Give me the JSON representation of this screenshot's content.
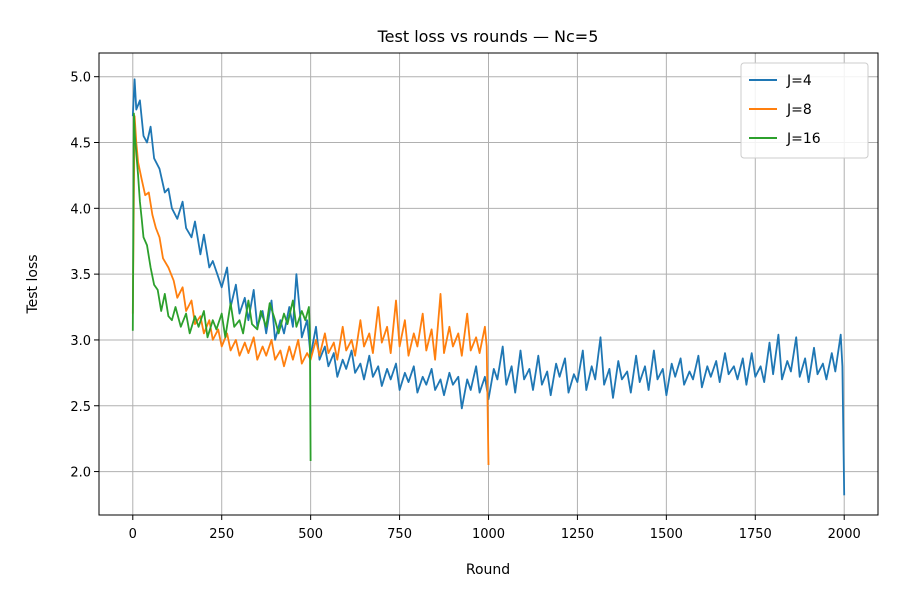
{
  "chart_data": {
    "type": "line",
    "title": "Test loss vs rounds — Nc=5",
    "xlabel": "Round",
    "ylabel": "Test loss",
    "xlim": [
      -95,
      2095
    ],
    "ylim": [
      1.67,
      5.18
    ],
    "xticks": [
      0,
      250,
      500,
      750,
      1000,
      1250,
      1500,
      1750,
      2000
    ],
    "yticks": [
      2.0,
      2.5,
      3.0,
      3.5,
      4.0,
      4.5,
      5.0
    ],
    "xtick_labels": [
      "0",
      "250",
      "500",
      "750",
      "1000",
      "1250",
      "1500",
      "1750",
      "2000"
    ],
    "ytick_labels": [
      "2.0",
      "2.5",
      "3.0",
      "3.5",
      "4.0",
      "4.5",
      "5.0"
    ],
    "grid": true,
    "legend_position": "top-right",
    "series": [
      {
        "name": "J=4",
        "color": "#1f77b4",
        "x": [
          0,
          5,
          10,
          20,
          30,
          40,
          50,
          60,
          75,
          90,
          100,
          110,
          125,
          140,
          150,
          165,
          175,
          190,
          200,
          215,
          225,
          240,
          250,
          265,
          275,
          290,
          300,
          315,
          325,
          340,
          350,
          365,
          375,
          390,
          400,
          415,
          425,
          440,
          450,
          460,
          470,
          475,
          490,
          500,
          515,
          525,
          540,
          550,
          565,
          575,
          590,
          600,
          615,
          625,
          640,
          650,
          665,
          675,
          690,
          700,
          715,
          725,
          740,
          750,
          765,
          775,
          790,
          800,
          815,
          825,
          840,
          850,
          865,
          875,
          890,
          900,
          915,
          925,
          940,
          950,
          965,
          975,
          990,
          1000,
          1015,
          1025,
          1040,
          1050,
          1065,
          1075,
          1090,
          1100,
          1115,
          1125,
          1140,
          1150,
          1165,
          1175,
          1190,
          1200,
          1215,
          1225,
          1240,
          1250,
          1265,
          1275,
          1290,
          1300,
          1315,
          1325,
          1340,
          1350,
          1365,
          1375,
          1390,
          1400,
          1415,
          1425,
          1440,
          1450,
          1465,
          1475,
          1490,
          1500,
          1515,
          1525,
          1540,
          1550,
          1565,
          1575,
          1590,
          1600,
          1615,
          1625,
          1640,
          1650,
          1665,
          1675,
          1690,
          1700,
          1715,
          1725,
          1740,
          1750,
          1765,
          1775,
          1790,
          1800,
          1815,
          1825,
          1840,
          1850,
          1865,
          1875,
          1890,
          1900,
          1915,
          1925,
          1940,
          1950,
          1965,
          1975,
          1990,
          1995,
          2000
        ],
        "values": [
          4.7,
          4.98,
          4.75,
          4.82,
          4.55,
          4.5,
          4.62,
          4.38,
          4.3,
          4.12,
          4.15,
          4.0,
          3.92,
          4.05,
          3.85,
          3.78,
          3.9,
          3.65,
          3.8,
          3.55,
          3.6,
          3.48,
          3.4,
          3.55,
          3.25,
          3.42,
          3.2,
          3.32,
          3.15,
          3.38,
          3.1,
          3.22,
          3.05,
          3.3,
          3.0,
          3.15,
          3.05,
          3.25,
          3.1,
          3.5,
          3.2,
          3.02,
          3.15,
          2.88,
          3.1,
          2.85,
          2.95,
          2.8,
          2.9,
          2.72,
          2.85,
          2.78,
          2.92,
          2.75,
          2.82,
          2.7,
          2.88,
          2.72,
          2.8,
          2.65,
          2.78,
          2.7,
          2.82,
          2.62,
          2.75,
          2.68,
          2.8,
          2.6,
          2.72,
          2.66,
          2.78,
          2.62,
          2.7,
          2.58,
          2.75,
          2.66,
          2.72,
          2.48,
          2.7,
          2.62,
          2.8,
          2.6,
          2.72,
          2.55,
          2.78,
          2.7,
          2.95,
          2.66,
          2.8,
          2.6,
          2.92,
          2.7,
          2.78,
          2.62,
          2.88,
          2.66,
          2.76,
          2.58,
          2.82,
          2.72,
          2.86,
          2.6,
          2.74,
          2.68,
          2.92,
          2.62,
          2.8,
          2.7,
          3.02,
          2.66,
          2.78,
          2.56,
          2.84,
          2.7,
          2.76,
          2.6,
          2.88,
          2.68,
          2.8,
          2.62,
          2.92,
          2.7,
          2.78,
          2.58,
          2.82,
          2.72,
          2.86,
          2.66,
          2.76,
          2.7,
          2.88,
          2.64,
          2.8,
          2.72,
          2.84,
          2.68,
          2.9,
          2.74,
          2.8,
          2.7,
          2.86,
          2.66,
          2.9,
          2.72,
          2.8,
          2.68,
          2.98,
          2.74,
          3.04,
          2.7,
          2.84,
          2.76,
          3.02,
          2.72,
          2.86,
          2.68,
          2.94,
          2.74,
          2.82,
          2.7,
          2.9,
          2.76,
          3.04,
          2.8,
          1.82
        ]
      },
      {
        "name": "J=8",
        "color": "#ff7f0e",
        "x": [
          0,
          5,
          10,
          15,
          25,
          35,
          45,
          55,
          65,
          75,
          85,
          100,
          115,
          125,
          140,
          150,
          165,
          175,
          190,
          200,
          215,
          225,
          240,
          250,
          265,
          275,
          290,
          300,
          315,
          325,
          340,
          350,
          365,
          375,
          390,
          400,
          415,
          425,
          440,
          450,
          465,
          475,
          490,
          500,
          515,
          525,
          540,
          550,
          565,
          575,
          590,
          600,
          615,
          625,
          640,
          650,
          665,
          675,
          690,
          700,
          715,
          725,
          740,
          750,
          765,
          775,
          790,
          800,
          815,
          825,
          840,
          850,
          865,
          875,
          890,
          900,
          915,
          925,
          940,
          950,
          965,
          975,
          990,
          995,
          1000
        ],
        "values": [
          3.2,
          4.7,
          4.5,
          4.35,
          4.22,
          4.1,
          4.12,
          3.95,
          3.85,
          3.78,
          3.62,
          3.55,
          3.45,
          3.32,
          3.4,
          3.22,
          3.3,
          3.12,
          3.18,
          3.05,
          3.15,
          3.0,
          3.08,
          2.95,
          3.05,
          2.92,
          3.0,
          2.88,
          2.98,
          2.9,
          3.02,
          2.85,
          2.95,
          2.88,
          3.0,
          2.85,
          2.92,
          2.8,
          2.95,
          2.85,
          3.0,
          2.82,
          2.9,
          2.85,
          3.0,
          2.88,
          3.05,
          2.9,
          2.98,
          2.85,
          3.1,
          2.92,
          3.0,
          2.88,
          3.15,
          2.95,
          3.05,
          2.9,
          3.25,
          2.98,
          3.1,
          2.9,
          3.3,
          2.95,
          3.15,
          2.88,
          3.05,
          2.95,
          3.2,
          2.92,
          3.08,
          2.85,
          3.35,
          2.9,
          3.1,
          2.95,
          3.05,
          2.88,
          3.2,
          2.92,
          3.02,
          2.9,
          3.1,
          2.95,
          2.05
        ]
      },
      {
        "name": "J=16",
        "color": "#2ca02c",
        "x": [
          0,
          3,
          6,
          10,
          15,
          20,
          25,
          30,
          40,
          50,
          60,
          70,
          80,
          90,
          100,
          110,
          120,
          135,
          150,
          160,
          175,
          185,
          200,
          210,
          225,
          235,
          250,
          260,
          275,
          285,
          300,
          310,
          325,
          335,
          350,
          360,
          375,
          385,
          400,
          410,
          425,
          435,
          450,
          460,
          475,
          485,
          495,
          498,
          500
        ],
        "values": [
          3.07,
          4.72,
          4.55,
          4.42,
          4.25,
          4.05,
          3.92,
          3.78,
          3.72,
          3.55,
          3.42,
          3.38,
          3.22,
          3.35,
          3.18,
          3.15,
          3.25,
          3.1,
          3.2,
          3.05,
          3.18,
          3.1,
          3.22,
          3.02,
          3.15,
          3.08,
          3.2,
          3.02,
          3.28,
          3.1,
          3.15,
          3.05,
          3.3,
          3.12,
          3.08,
          3.22,
          3.1,
          3.28,
          3.15,
          3.05,
          3.2,
          3.12,
          3.3,
          3.1,
          3.22,
          3.15,
          3.25,
          3.05,
          2.08
        ]
      }
    ]
  }
}
